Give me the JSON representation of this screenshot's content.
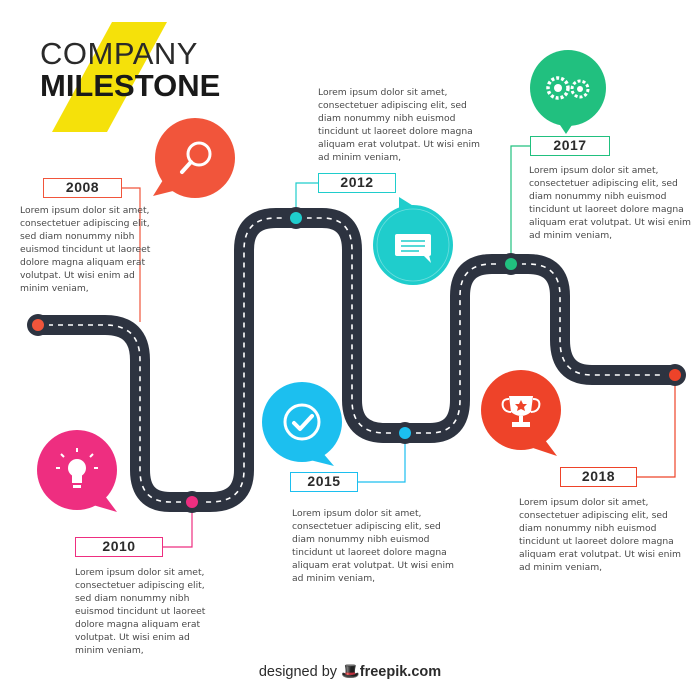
{
  "title": {
    "line1": "COMPANY",
    "line2": "MILESTONE"
  },
  "colors": {
    "title_accent": "#f5e10a",
    "road": "#2d3340",
    "orange": "#f1553b",
    "teal": "#1fcdcc",
    "green": "#21c07f",
    "pink": "#ee2e80",
    "blue": "#1cbfef",
    "red": "#ee4329"
  },
  "milestones": [
    {
      "year": "2008",
      "icon": "magnifier-icon",
      "color": "#f1553b",
      "text": [
        "Lorem ipsum dolor sit amet,",
        "consectetuer adipiscing elit,",
        "sed diam nonummy nibh",
        "euismod tincidunt ut laoreet",
        "dolore magna aliquam erat",
        "volutpat. Ut wisi enim ad",
        "minim veniam,"
      ]
    },
    {
      "year": "2010",
      "icon": "lightbulb-icon",
      "color": "#ee2e80",
      "text": [
        "Lorem ipsum dolor sit amet,",
        "consectetuer adipiscing elit,",
        "sed diam nonummy nibh",
        "euismod tincidunt ut laoreet",
        "dolore magna aliquam erat",
        "volutpat. Ut wisi enim ad",
        "minim veniam,"
      ]
    },
    {
      "year": "2012",
      "icon": "chat-icon",
      "color": "#1fcdcc",
      "text": [
        "Lorem ipsum dolor sit amet,",
        "consectetuer adipiscing elit, sed",
        "diam nonummy nibh euismod",
        "tincidunt ut laoreet dolore magna",
        "aliquam erat volutpat. Ut wisi enim",
        "ad minim veniam,"
      ]
    },
    {
      "year": "2015",
      "icon": "checkmark-icon",
      "color": "#1cbfef",
      "text": [
        "Lorem ipsum dolor sit amet,",
        "consectetuer adipiscing elit, sed",
        "diam nonummy nibh euismod",
        "tincidunt ut laoreet dolore magna",
        "aliquam erat volutpat. Ut wisi enim",
        "ad minim veniam,"
      ]
    },
    {
      "year": "2017",
      "icon": "gears-icon",
      "color": "#21c07f",
      "text": [
        "Lorem ipsum dolor sit amet,",
        "consectetuer adipiscing elit, sed",
        "diam nonummy nibh euismod",
        "tincidunt ut laoreet dolore magna",
        "aliquam erat volutpat. Ut wisi enim",
        "ad minim veniam,"
      ]
    },
    {
      "year": "2018",
      "icon": "trophy-icon",
      "color": "#ee4329",
      "text": [
        "Lorem ipsum dolor sit amet,",
        "consectetuer adipiscing elit, sed",
        "diam nonummy nibh euismod",
        "tincidunt ut laoreet dolore magna",
        "aliquam erat volutpat. Ut wisi enim",
        "ad minim veniam,"
      ]
    }
  ],
  "credit": {
    "prefix": "designed by",
    "brand": "freepik.com"
  }
}
